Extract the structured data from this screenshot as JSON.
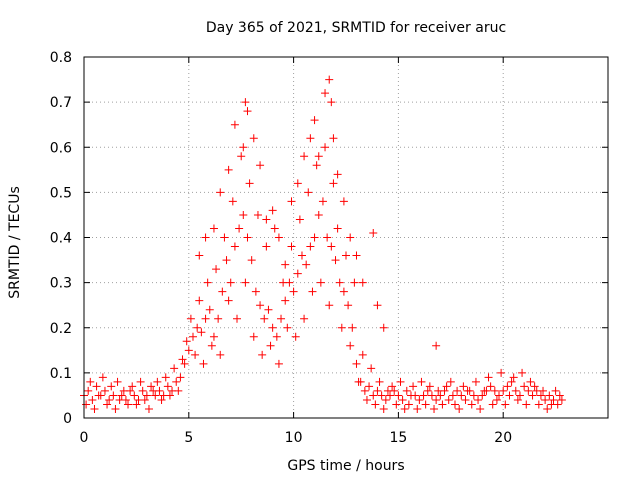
{
  "chart_data": {
    "type": "scatter",
    "title": "Day 365 of 2021, SRMTID for receiver aruc",
    "xlabel": "GPS time / hours",
    "ylabel": "SRMTID / TECUs",
    "xlim": [
      0,
      25
    ],
    "ylim": [
      0,
      0.8
    ],
    "xticks": [
      0,
      5,
      10,
      15,
      20
    ],
    "xtick_labels": [
      "0",
      "5",
      "10",
      "15",
      "20"
    ],
    "yticks": [
      0,
      0.1,
      0.2,
      0.3,
      0.4,
      0.5,
      0.6,
      0.7,
      0.8
    ],
    "ytick_labels": [
      "0",
      "0.1",
      "0.2",
      "0.3",
      "0.4",
      "0.5",
      "0.6",
      "0.7",
      "0.8"
    ],
    "grid": true,
    "marker": "plus",
    "color": "#ff0000",
    "series": [
      {
        "name": "SRMTID",
        "x": [
          0.0,
          0.2,
          0.4,
          0.6,
          0.8,
          1.0,
          1.2,
          1.4,
          1.6,
          1.8,
          2.0,
          2.2,
          2.4,
          2.6,
          2.8,
          3.0,
          3.2,
          3.4,
          3.6,
          3.8,
          4.0,
          4.2,
          4.4,
          4.6,
          4.8,
          5.0,
          5.2,
          5.4,
          5.6,
          5.8,
          6.0,
          6.2,
          6.4,
          6.6,
          6.8,
          7.0,
          7.2,
          7.4,
          7.6,
          7.8,
          8.0,
          8.2,
          8.4,
          8.6,
          8.8,
          9.0,
          9.2,
          9.4,
          9.6,
          9.8,
          10.0,
          10.2,
          10.4,
          10.6,
          10.8,
          11.0,
          11.2,
          11.4,
          11.6,
          11.8,
          12.0,
          12.2,
          12.4,
          12.6,
          12.8,
          13.0,
          13.2,
          13.4,
          13.6,
          13.8,
          14.0,
          14.2,
          14.4,
          14.6,
          14.8,
          15.0,
          15.2,
          15.4,
          15.6,
          15.8,
          16.0,
          16.2,
          16.4,
          16.6,
          16.8,
          17.0,
          17.2,
          17.4,
          17.6,
          17.8,
          18.0,
          18.2,
          18.4,
          18.6,
          18.8,
          19.0,
          19.2,
          19.4,
          19.6,
          19.8,
          20.0,
          20.2,
          20.4,
          20.6,
          20.8,
          21.0,
          21.2,
          21.4,
          21.6,
          21.8,
          22.0,
          22.2,
          22.4,
          22.6,
          22.8,
          0.1,
          0.3,
          0.5,
          0.7,
          0.9,
          1.1,
          1.3,
          1.5,
          1.7,
          1.9,
          2.1,
          2.3,
          2.5,
          2.7,
          2.9,
          3.1,
          3.3,
          3.5,
          3.7,
          3.9,
          4.1,
          4.3,
          4.5,
          4.7,
          4.9,
          5.1,
          5.3,
          5.5,
          5.7,
          5.9,
          6.1,
          6.3,
          6.5,
          6.7,
          6.9,
          7.1,
          7.3,
          7.5,
          7.7,
          7.9,
          8.1,
          8.3,
          8.5,
          8.7,
          8.9,
          9.1,
          9.3,
          9.5,
          9.7,
          9.9,
          10.1,
          10.3,
          10.5,
          10.7,
          10.9,
          11.1,
          11.3,
          11.5,
          11.7,
          11.9,
          12.1,
          12.3,
          12.5,
          12.7,
          12.9,
          13.1,
          13.3,
          13.5,
          13.7,
          13.9,
          14.1,
          14.3,
          14.5,
          14.7,
          14.9,
          15.1,
          15.3,
          15.5,
          15.7,
          15.9,
          16.1,
          16.3,
          16.5,
          16.7,
          16.9,
          17.1,
          17.3,
          17.5,
          17.7,
          17.9,
          18.1,
          18.3,
          18.5,
          18.7,
          18.9,
          19.1,
          19.3,
          19.5,
          19.7,
          19.9,
          20.1,
          20.3,
          20.5,
          20.7,
          20.9,
          21.1,
          21.3,
          21.5,
          21.7,
          21.9,
          22.1,
          22.3,
          22.5,
          22.7,
          5.5,
          5.8,
          6.2,
          6.5,
          6.9,
          7.2,
          7.6,
          7.7,
          7.8,
          8.1,
          8.4,
          8.7,
          9.0,
          9.3,
          9.6,
          9.9,
          10.2,
          10.5,
          10.8,
          11.0,
          11.2,
          11.5,
          11.7,
          11.8,
          11.9,
          12.1,
          12.4,
          12.7,
          13.0,
          13.3,
          13.8,
          14.0,
          14.3,
          16.8
        ],
        "y": [
          0.05,
          0.06,
          0.04,
          0.07,
          0.05,
          0.06,
          0.04,
          0.05,
          0.08,
          0.05,
          0.04,
          0.06,
          0.05,
          0.04,
          0.06,
          0.05,
          0.07,
          0.05,
          0.06,
          0.05,
          0.07,
          0.06,
          0.08,
          0.09,
          0.12,
          0.15,
          0.18,
          0.2,
          0.19,
          0.22,
          0.24,
          0.18,
          0.22,
          0.28,
          0.35,
          0.3,
          0.38,
          0.42,
          0.45,
          0.4,
          0.35,
          0.28,
          0.25,
          0.22,
          0.24,
          0.2,
          0.18,
          0.22,
          0.26,
          0.3,
          0.28,
          0.32,
          0.36,
          0.34,
          0.38,
          0.4,
          0.45,
          0.48,
          0.4,
          0.38,
          0.35,
          0.3,
          0.28,
          0.25,
          0.2,
          0.12,
          0.08,
          0.06,
          0.07,
          0.05,
          0.06,
          0.05,
          0.04,
          0.05,
          0.06,
          0.05,
          0.04,
          0.06,
          0.05,
          0.05,
          0.04,
          0.05,
          0.06,
          0.05,
          0.04,
          0.05,
          0.06,
          0.04,
          0.05,
          0.06,
          0.05,
          0.04,
          0.06,
          0.05,
          0.04,
          0.05,
          0.06,
          0.07,
          0.06,
          0.05,
          0.06,
          0.07,
          0.08,
          0.06,
          0.05,
          0.07,
          0.06,
          0.05,
          0.06,
          0.05,
          0.04,
          0.05,
          0.04,
          0.03,
          0.04,
          0.03,
          0.08,
          0.02,
          0.05,
          0.09,
          0.03,
          0.07,
          0.02,
          0.04,
          0.06,
          0.03,
          0.07,
          0.03,
          0.08,
          0.04,
          0.02,
          0.06,
          0.08,
          0.04,
          0.09,
          0.05,
          0.11,
          0.06,
          0.13,
          0.17,
          0.22,
          0.14,
          0.26,
          0.12,
          0.3,
          0.16,
          0.33,
          0.14,
          0.4,
          0.26,
          0.48,
          0.22,
          0.58,
          0.3,
          0.52,
          0.18,
          0.45,
          0.14,
          0.38,
          0.16,
          0.42,
          0.12,
          0.3,
          0.2,
          0.38,
          0.18,
          0.44,
          0.22,
          0.5,
          0.28,
          0.56,
          0.3,
          0.6,
          0.25,
          0.52,
          0.42,
          0.2,
          0.36,
          0.16,
          0.3,
          0.08,
          0.14,
          0.04,
          0.11,
          0.03,
          0.08,
          0.02,
          0.06,
          0.07,
          0.03,
          0.08,
          0.02,
          0.03,
          0.07,
          0.02,
          0.08,
          0.03,
          0.07,
          0.02,
          0.06,
          0.03,
          0.07,
          0.08,
          0.03,
          0.02,
          0.07,
          0.06,
          0.03,
          0.08,
          0.02,
          0.06,
          0.09,
          0.03,
          0.04,
          0.1,
          0.03,
          0.05,
          0.09,
          0.04,
          0.1,
          0.03,
          0.08,
          0.07,
          0.03,
          0.06,
          0.02,
          0.03,
          0.06,
          0.05,
          0.36,
          0.4,
          0.42,
          0.5,
          0.55,
          0.65,
          0.6,
          0.7,
          0.68,
          0.62,
          0.56,
          0.44,
          0.46,
          0.4,
          0.34,
          0.48,
          0.52,
          0.58,
          0.62,
          0.66,
          0.58,
          0.72,
          0.75,
          0.7,
          0.62,
          0.54,
          0.48,
          0.4,
          0.36,
          0.3,
          0.41,
          0.25,
          0.2,
          0.16
        ]
      }
    ]
  }
}
